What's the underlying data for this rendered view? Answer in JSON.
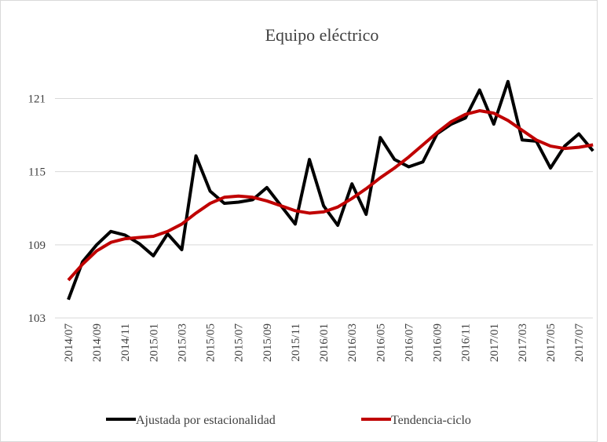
{
  "chart_data": {
    "type": "line",
    "title": "Equipo eléctrico",
    "categories": [
      "2014/07",
      null,
      "2014/09",
      null,
      "2014/11",
      null,
      "2015/01",
      null,
      "2015/03",
      null,
      "2015/05",
      null,
      "2015/07",
      null,
      "2015/09",
      null,
      "2015/11",
      null,
      "2016/01",
      null,
      "2016/03",
      null,
      "2016/05",
      null,
      "2016/07",
      null,
      "2016/09",
      null,
      "2016/11",
      null,
      "2017/01",
      null,
      "2017/03",
      null,
      "2017/05",
      null,
      "2017/07",
      null
    ],
    "series": [
      {
        "name": "Ajustada por estacionalidad",
        "color": "#000000",
        "values": [
          104.5,
          107.6,
          109.0,
          110.1,
          109.8,
          109.1,
          108.1,
          109.9,
          108.6,
          116.3,
          113.4,
          112.4,
          112.5,
          112.7,
          113.7,
          112.2,
          110.7,
          116.0,
          112.2,
          110.6,
          114.0,
          111.5,
          117.8,
          116.0,
          115.4,
          115.8,
          118.1,
          118.9,
          119.4,
          121.7,
          118.9,
          122.4,
          117.6,
          117.5,
          115.3,
          117.1,
          118.1,
          116.7
        ]
      },
      {
        "name": "Tendencia-ciclo",
        "color": "#c00000",
        "values": [
          106.1,
          107.4,
          108.5,
          109.2,
          109.5,
          109.6,
          109.7,
          110.1,
          110.7,
          111.6,
          112.4,
          112.9,
          113.0,
          112.9,
          112.6,
          112.2,
          111.8,
          111.6,
          111.7,
          112.1,
          112.8,
          113.6,
          114.5,
          115.3,
          116.2,
          117.2,
          118.2,
          119.1,
          119.7,
          120.0,
          119.8,
          119.2,
          118.4,
          117.6,
          117.1,
          116.9,
          117.0,
          117.2
        ]
      }
    ],
    "ylim": [
      103,
      122.9
    ],
    "yticks": [
      103,
      109,
      115,
      121
    ],
    "grid": true,
    "legend": "bottom"
  }
}
